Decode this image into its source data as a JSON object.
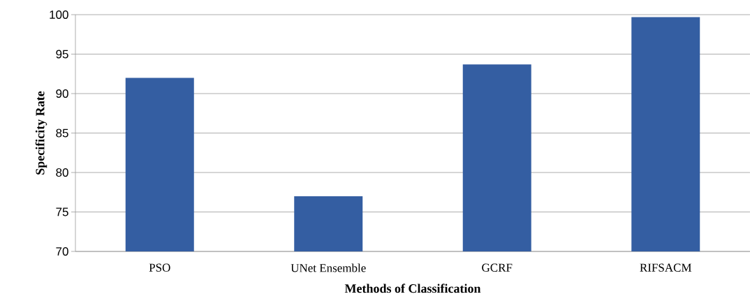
{
  "chart_data": {
    "type": "bar",
    "xlabel": "Methods of Classification",
    "ylabel": "Specificity  Rate",
    "categories": [
      "PSO",
      "UNet Ensemble",
      "GCRF",
      "RIFSACM"
    ],
    "values": [
      92.0,
      77.0,
      93.7,
      99.7
    ],
    "color": "#345ea2",
    "ylim": [
      70,
      100
    ],
    "yticks": [
      70,
      75,
      80,
      85,
      90,
      95,
      100
    ],
    "grid": "y"
  }
}
